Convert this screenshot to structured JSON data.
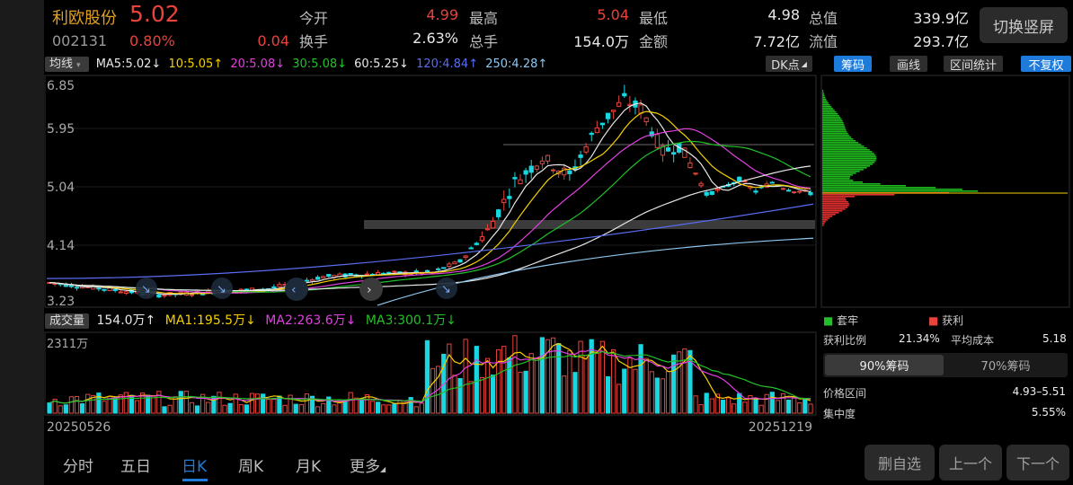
{
  "header": {
    "name": "利欧股份",
    "price": "5.02",
    "code": "002131",
    "change_pct": "0.80%",
    "change": "0.04",
    "stats": [
      {
        "label": "今开",
        "value": "4.99",
        "color": "#e8433c"
      },
      {
        "label": "最高",
        "value": "5.04",
        "color": "#e8433c"
      },
      {
        "label": "最低",
        "value": "4.98",
        "color": "#e8e8e8"
      },
      {
        "label": "总值",
        "value": "339.9亿",
        "color": "#e8e8e8"
      },
      {
        "label": "换手",
        "value": "2.63%",
        "color": "#e8e8e8"
      },
      {
        "label": "总手",
        "value": "154.0万",
        "color": "#e8e8e8"
      },
      {
        "label": "金额",
        "value": "7.72亿",
        "color": "#e8e8e8"
      },
      {
        "label": "流值",
        "value": "293.7亿",
        "color": "#e8e8e8"
      }
    ],
    "switch_button": "切换竖屏"
  },
  "ma_bar": {
    "selector": "均线",
    "items": [
      {
        "text": "MA5:5.02↓",
        "color": "#e8e8e8"
      },
      {
        "text": "10:5.05↑",
        "color": "#f5d000"
      },
      {
        "text": "20:5.08↓",
        "color": "#e040e0"
      },
      {
        "text": "30:5.08↓",
        "color": "#22c028"
      },
      {
        "text": "60:5.25↓",
        "color": "#e8e8e8"
      },
      {
        "text": "120:4.84↑",
        "color": "#5a6cf0"
      },
      {
        "text": "250:4.28↑",
        "color": "#8fc8f0"
      }
    ],
    "dk_button": "DK点"
  },
  "right_tabs": {
    "chips": "筹码",
    "draw": "画线",
    "range": "区间统计",
    "adjust": "不复权"
  },
  "price_axis": {
    "ticks": [
      "6.85",
      "5.95",
      "5.04",
      "4.14",
      "3.23"
    ]
  },
  "volume_bar": {
    "selector": "成交量",
    "value": "154.0万↑",
    "ma1": "MA1:195.5万↓",
    "ma2": "MA2:263.6万↓",
    "ma3": "MA3:300.1万↓",
    "ma1_color": "#f5d000",
    "ma2_color": "#e040e0",
    "ma3_color": "#22c028",
    "axis_max": "2311万"
  },
  "dates": {
    "start": "20250526",
    "end": "20251219"
  },
  "chip_panel": {
    "legend_trapped": "套牢",
    "legend_profit": "获利",
    "profit_ratio_label": "获利比例",
    "profit_ratio": "21.34%",
    "avg_cost_label": "平均成本",
    "avg_cost": "5.18",
    "tab_90": "90%筹码",
    "tab_70": "70%筹码",
    "range_label": "价格区间",
    "range_value": "4.93–5.51",
    "concentration_label": "集中度",
    "concentration": "5.55%"
  },
  "bottom_tabs": [
    "分时",
    "五日",
    "日K",
    "周K",
    "月K",
    "更多"
  ],
  "bottom_buttons": {
    "remove": "删自选",
    "prev": "上一个",
    "next": "下一个"
  },
  "colors": {
    "up": "#e8433c",
    "down": "#19d7e0",
    "accent_blue": "#1e7bdc"
  }
}
